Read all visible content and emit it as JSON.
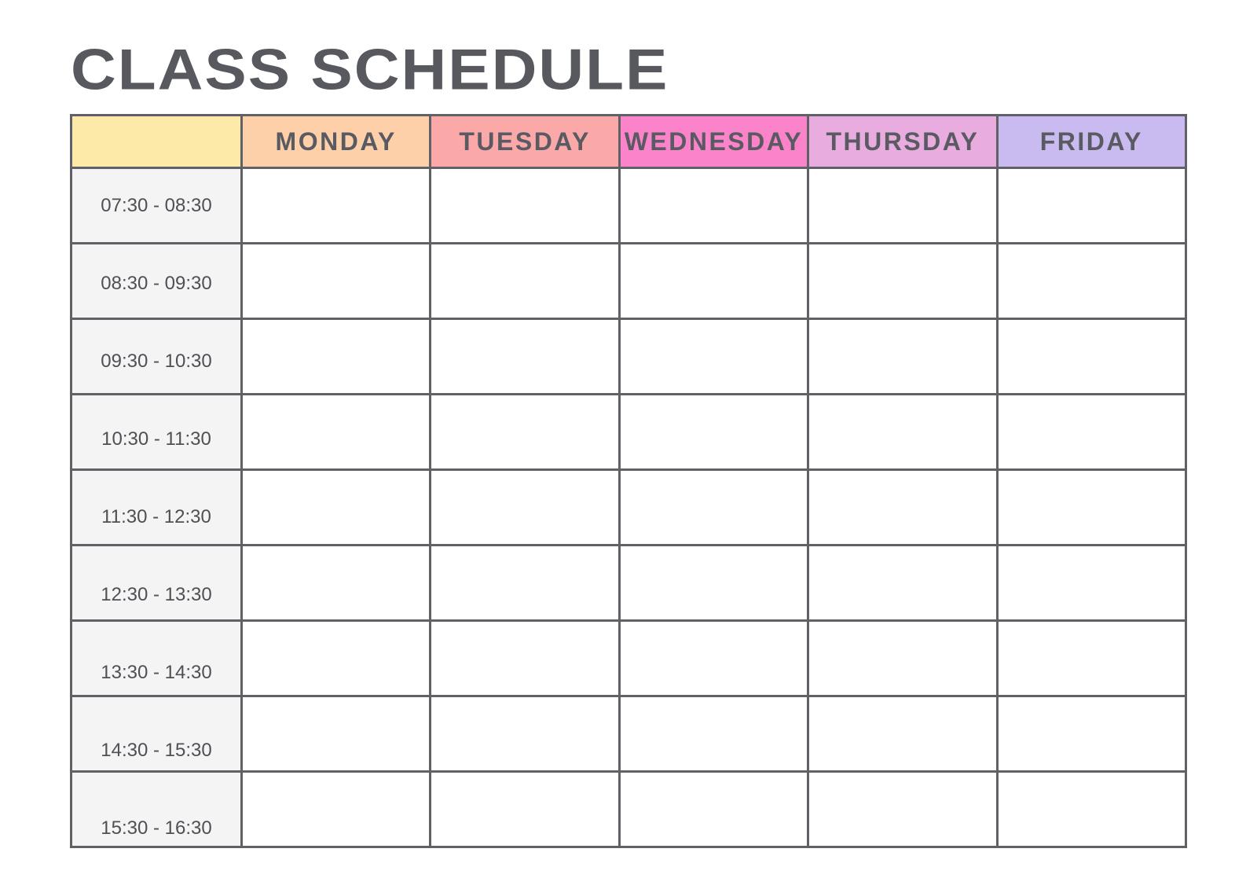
{
  "title": "CLASS SCHEDULE",
  "colors": {
    "corner": "#fdeaa9",
    "border": "#606167",
    "time_bg": "#f4f4f4"
  },
  "days": [
    {
      "label": "MONDAY",
      "color": "#fdd0a9"
    },
    {
      "label": "TUESDAY",
      "color": "#fba8a8"
    },
    {
      "label": "WEDNESDAY",
      "color": "#fb83c9"
    },
    {
      "label": "THURSDAY",
      "color": "#e8acdf"
    },
    {
      "label": "FRIDAY",
      "color": "#c9bbef"
    }
  ],
  "times": [
    "07:30 - 08:30",
    "08:30 - 09:30",
    "09:30 - 10:30",
    "10:30 - 11:30",
    "11:30 - 12:30",
    "12:30 - 13:30",
    "13:30 - 14:30",
    "14:30 - 15:30",
    "15:30 - 16:30"
  ]
}
